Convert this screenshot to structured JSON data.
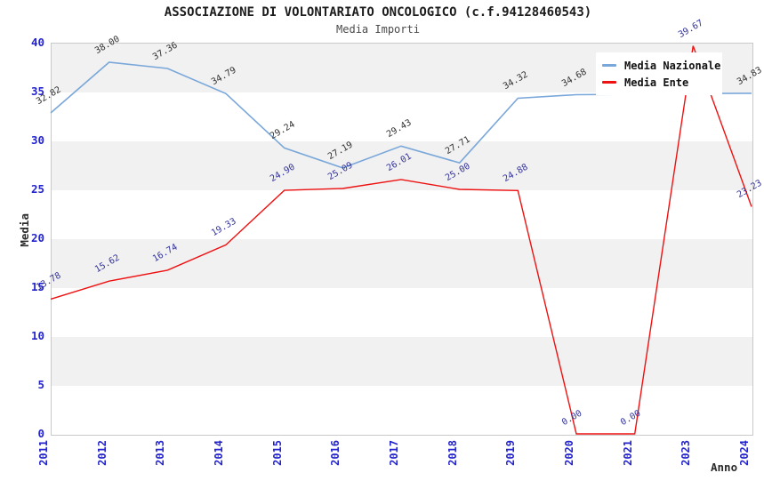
{
  "chart_data": {
    "type": "line",
    "title": "ASSOCIAZIONE DI VOLONTARIATO ONCOLOGICO (c.f.94128460543)",
    "subtitle": "Media Importi",
    "xlabel": "Anno",
    "ylabel": "Media",
    "categories": [
      "2011",
      "2012",
      "2013",
      "2014",
      "2015",
      "2016",
      "2017",
      "2018",
      "2019",
      "2020",
      "2021",
      "2023",
      "2024"
    ],
    "ylim": [
      0,
      40
    ],
    "ytick_step": 5,
    "grid_bands": {
      "band_color": "#f1f1f1",
      "alt_color": "#ffffff",
      "top_band_shaded": true
    },
    "legend_position": "top-right",
    "tick_color": "#2424cd",
    "series": [
      {
        "name": "Media Nazionale",
        "color": "#7aa7da",
        "label_color": "#303030",
        "values": [
          32.82,
          38.0,
          37.36,
          34.79,
          29.24,
          27.19,
          29.43,
          27.71,
          34.32,
          34.68,
          34.72,
          34.8,
          34.83
        ],
        "labels": [
          "32.82",
          "38.00",
          "37.36",
          "34.79",
          "29.24",
          "27.19",
          "29.43",
          "27.71",
          "34.32",
          "34.68",
          null,
          null,
          "34.83"
        ]
      },
      {
        "name": "Media Ente",
        "color": "#ee1111",
        "label_color": "#32329b",
        "values": [
          13.78,
          15.62,
          16.74,
          19.33,
          24.9,
          25.09,
          26.01,
          25.0,
          24.88,
          0.0,
          0.0,
          39.67,
          23.23
        ],
        "labels": [
          "13.78",
          "15.62",
          "16.74",
          "19.33",
          "24.90",
          "25.09",
          "26.01",
          "25.00",
          "24.88",
          "0.00",
          "0.00",
          "39.67",
          "23.23"
        ]
      }
    ]
  }
}
